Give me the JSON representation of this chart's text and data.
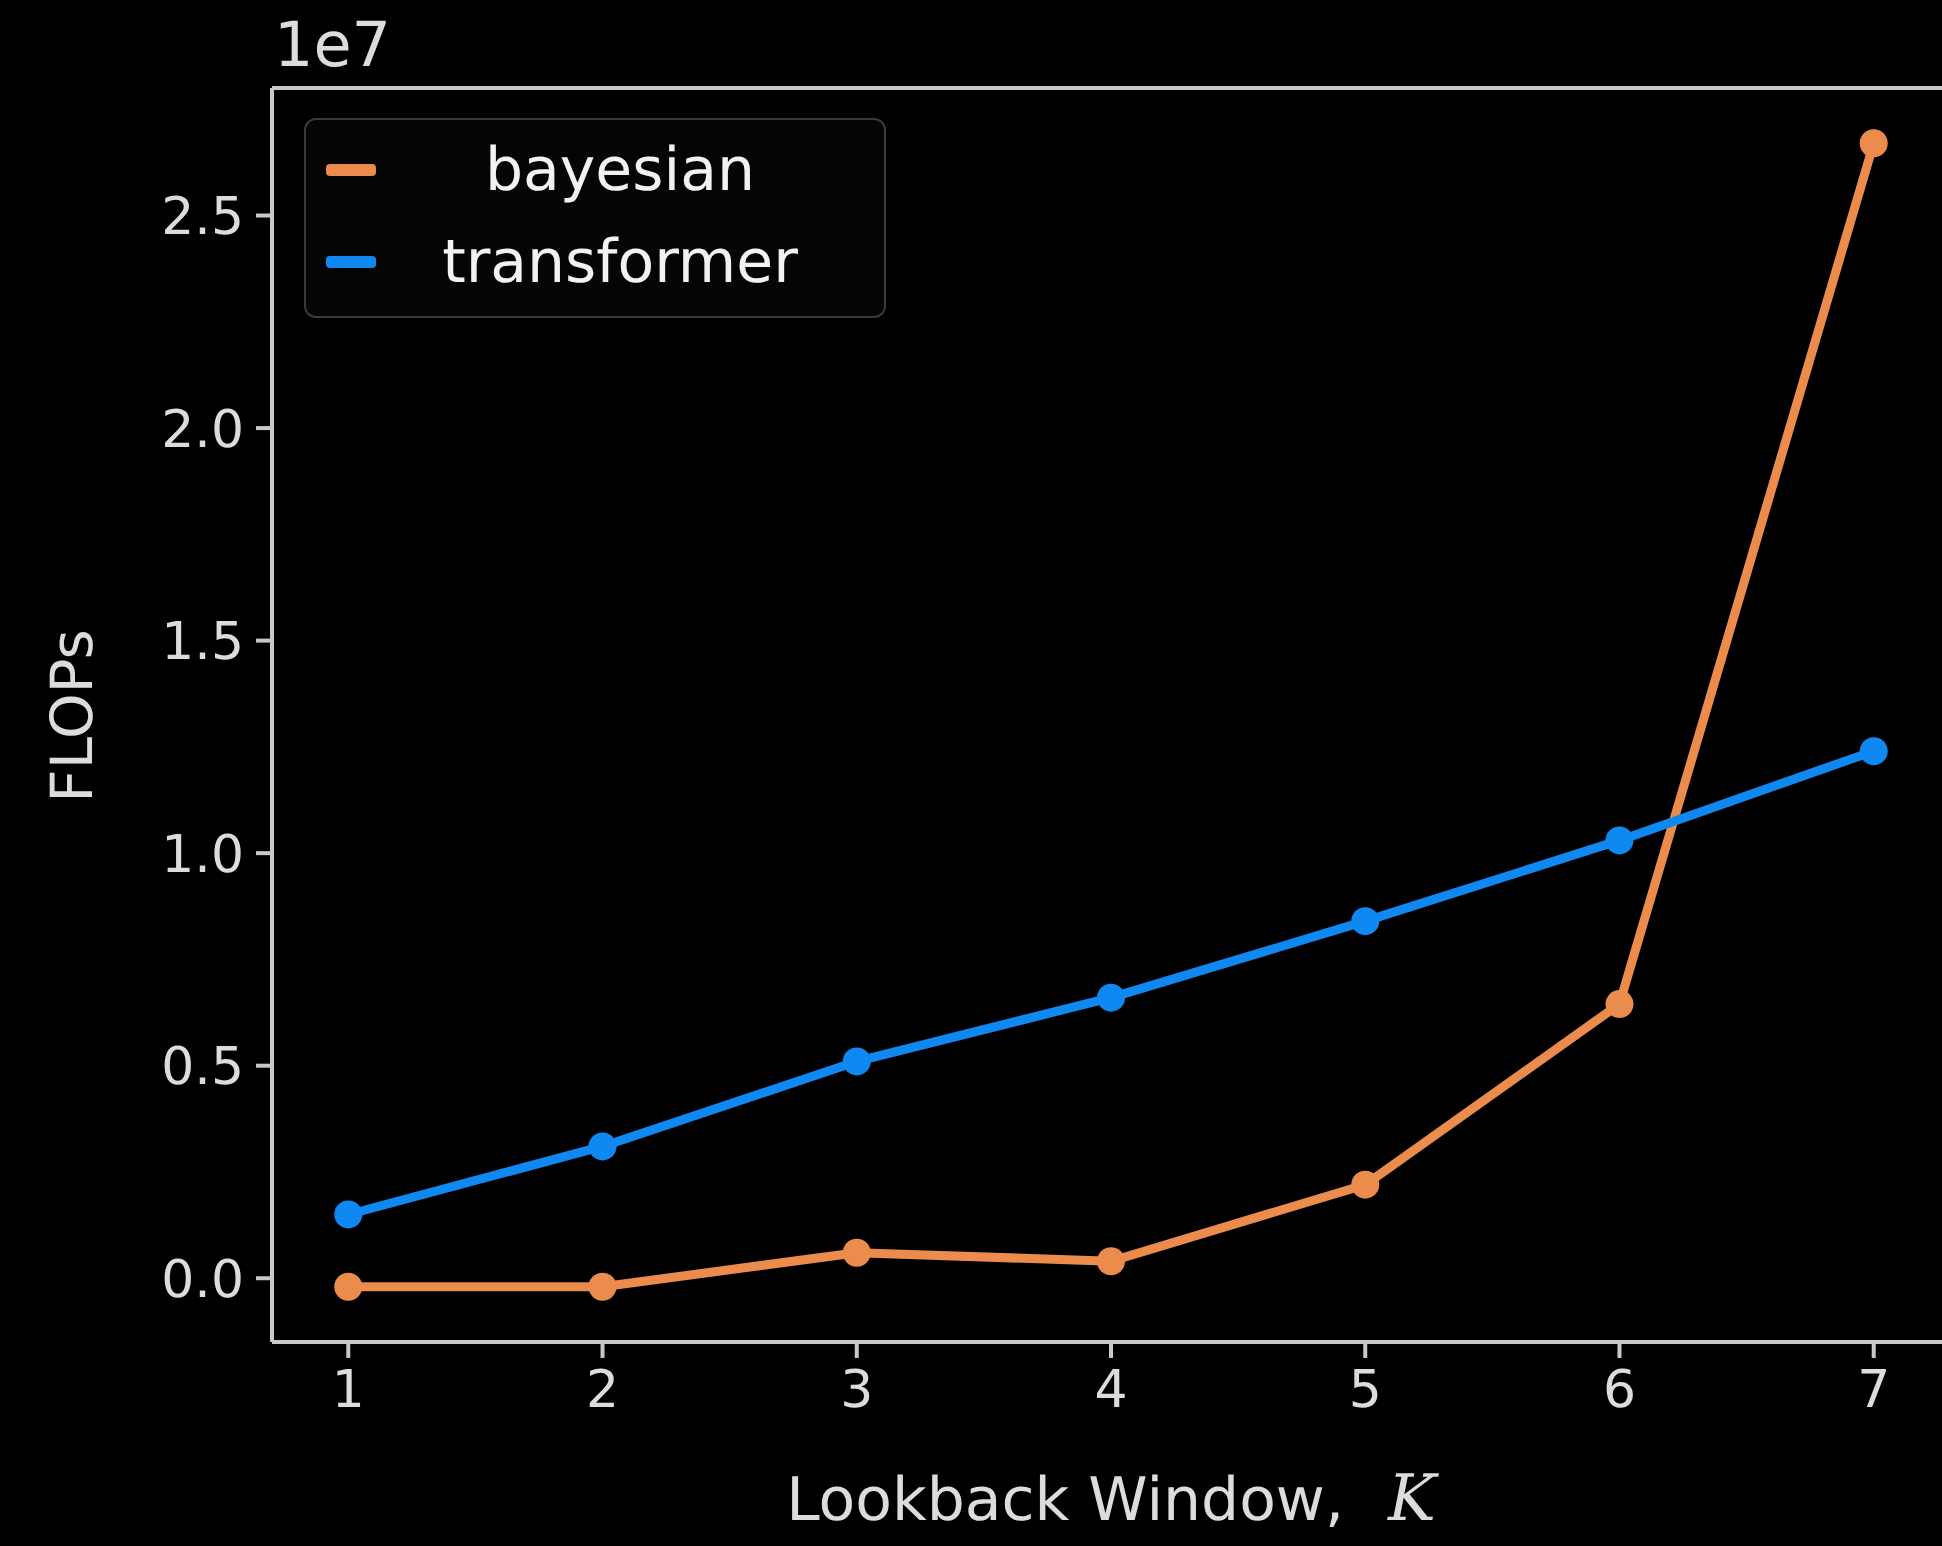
{
  "chart_data": {
    "type": "line",
    "xlabel": "Lookback Window, K",
    "ylabel": "FLOPs",
    "annotations": [
      "1e7"
    ],
    "x": [
      1,
      2,
      3,
      4,
      5,
      6,
      7
    ],
    "series": [
      {
        "name": "bayesian",
        "color": "#ec8c4c",
        "values": [
          -0.02,
          -0.02,
          0.06,
          0.04,
          0.22,
          0.645,
          2.67
        ]
      },
      {
        "name": "transformer",
        "color": "#0f88f2",
        "values": [
          0.15,
          0.31,
          0.51,
          0.66,
          0.84,
          1.03,
          1.24
        ]
      }
    ],
    "xlim": [
      0.7,
      7.3
    ],
    "ylim": [
      -0.15,
      2.8
    ],
    "xticks": [
      1,
      2,
      3,
      4,
      5,
      6,
      7
    ],
    "yticks": [
      {
        "value": 0,
        "label": "0.0"
      },
      0.5,
      {
        "value": 1,
        "label": "1.0"
      },
      1.5,
      {
        "value": 2,
        "label": "2.0"
      },
      2.5
    ],
    "grid": false,
    "legend": "top left",
    "marker": "circle",
    "line_style": "solid"
  }
}
